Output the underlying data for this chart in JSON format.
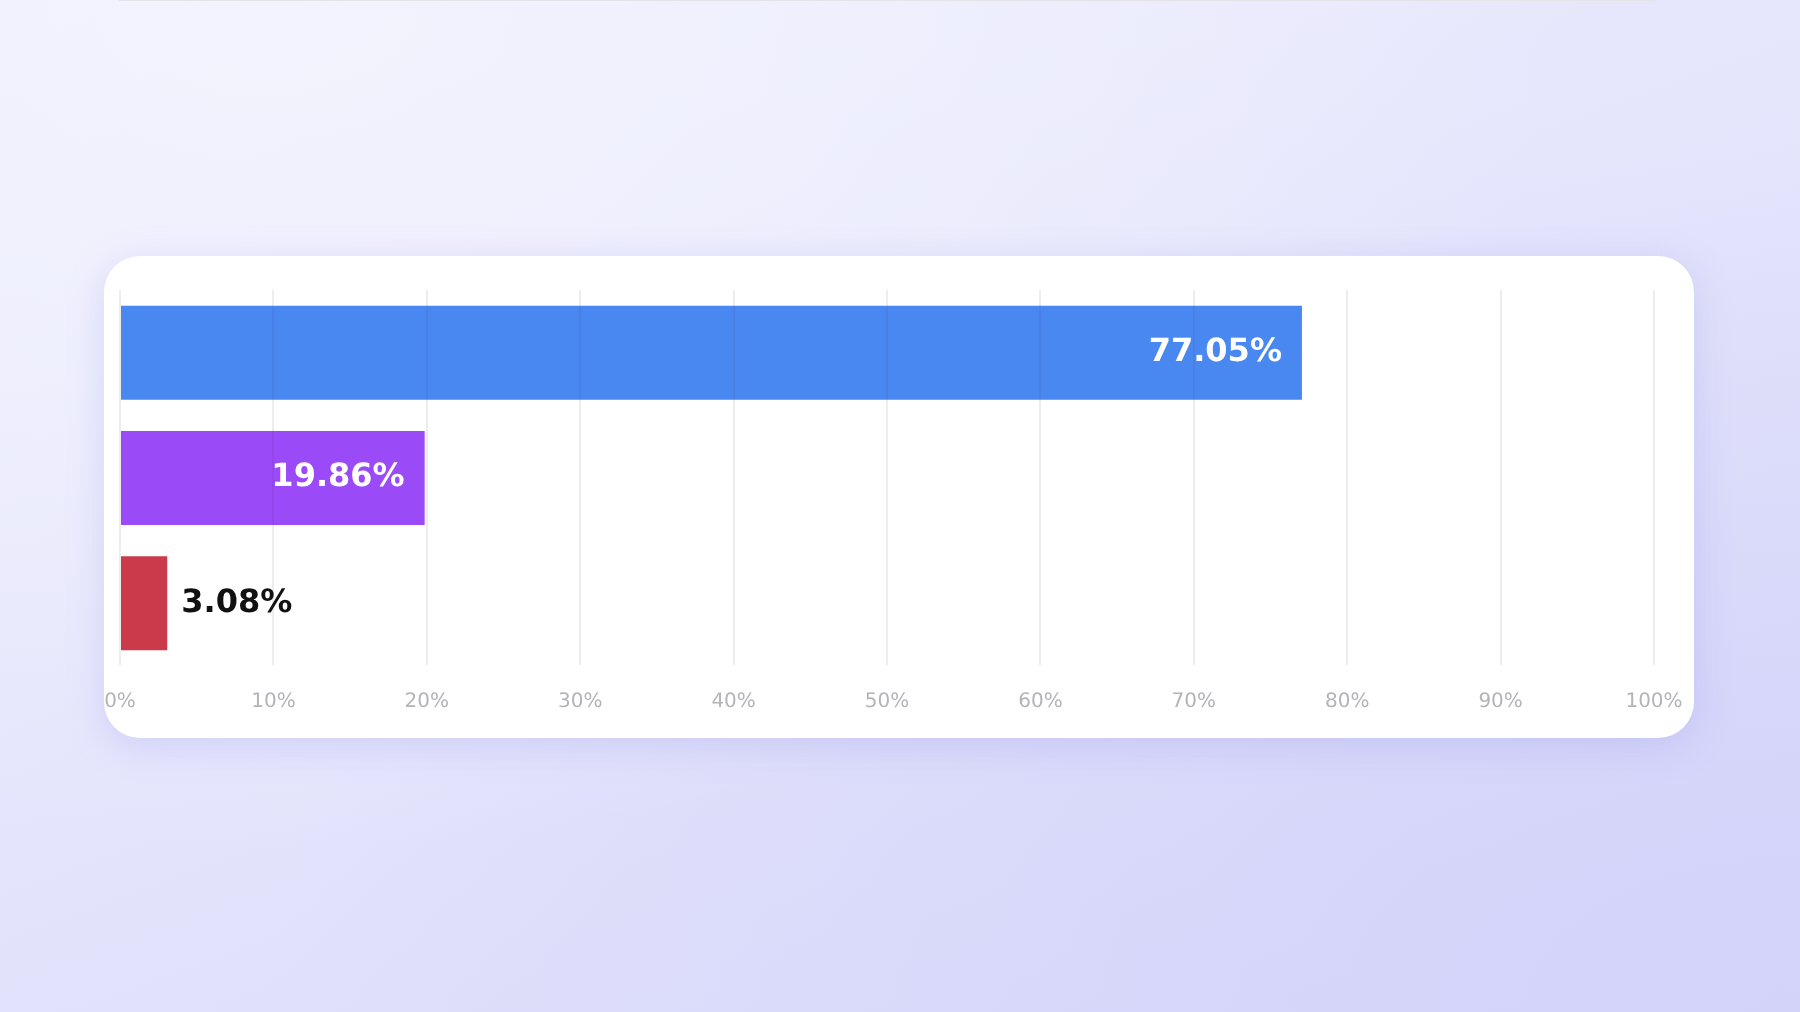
{
  "chart_data": {
    "type": "bar",
    "orientation": "horizontal",
    "categories": [
      null,
      null,
      null
    ],
    "values": [
      77.05,
      19.86,
      3.08
    ],
    "colors": [
      "#4a88f1",
      "#9a4af6",
      "#cb3a4a"
    ],
    "value_labels": [
      "77.05%",
      "19.86%",
      "3.08%"
    ],
    "xlim": [
      0,
      100
    ],
    "xticks": [
      {
        "value": 0,
        "label": "0%"
      },
      {
        "value": 10,
        "label": "10%"
      },
      {
        "value": 20,
        "label": "20%"
      },
      {
        "value": 30,
        "label": "30%"
      },
      {
        "value": 40,
        "label": "40%"
      },
      {
        "value": 50,
        "label": "50%"
      },
      {
        "value": 60,
        "label": "60%"
      },
      {
        "value": 70,
        "label": "70%"
      },
      {
        "value": 80,
        "label": "80%"
      },
      {
        "value": 90,
        "label": "90%"
      },
      {
        "value": 100,
        "label": "100%"
      }
    ],
    "grid": "x",
    "tick_labels": "x"
  }
}
